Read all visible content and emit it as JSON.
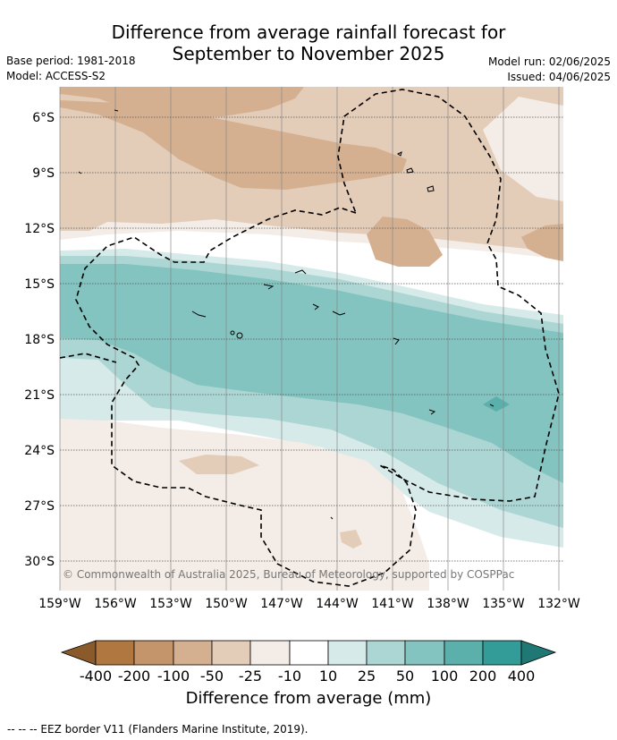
{
  "title_line1": "Difference from average rainfall forecast for",
  "title_line2": "September to November 2025",
  "base_period": "Base period: 1981-2018",
  "model": "Model: ACCESS-S2",
  "model_run": "Model run: 02/06/2025",
  "issued": "Issued: 04/06/2025",
  "credit": "© Commonwealth of Australia 2025, Bureau of Meteorology, supported by COSPPac",
  "lat_labels": [
    "6°S",
    "9°S",
    "12°S",
    "15°S",
    "18°S",
    "21°S",
    "24°S",
    "27°S",
    "30°S"
  ],
  "lon_labels": [
    "159°W",
    "156°W",
    "153°W",
    "150°W",
    "147°W",
    "144°W",
    "141°W",
    "138°W",
    "135°W",
    "132°W"
  ],
  "colorbar": {
    "title": "Difference from average (mm)",
    "labels": [
      "-400",
      "-200",
      "-100",
      "-50",
      "-25",
      "-10",
      "10",
      "25",
      "50",
      "100",
      "200",
      "400"
    ],
    "colors": [
      "#8b5a2b",
      "#b07840",
      "#c4956a",
      "#d4b090",
      "#e3ccb8",
      "#f4ece6",
      "#ffffff",
      "#d5eae9",
      "#acd6d3",
      "#83c3c0",
      "#5bb0ac",
      "#339c98",
      "#1f7873"
    ]
  },
  "footer": "--  --  -- EEZ border V11 (Flanders Marine Institute, 2019)."
}
